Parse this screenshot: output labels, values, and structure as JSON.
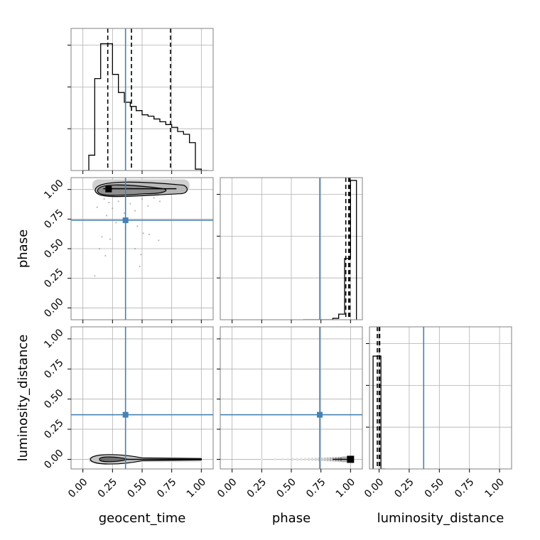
{
  "chart_data": {
    "type": "corner",
    "parameters": [
      "geocent_time",
      "phase",
      "luminosity_distance"
    ],
    "truths": {
      "geocent_time": 0.36,
      "phase": 0.74,
      "luminosity_distance": 0.37
    },
    "colors": {
      "truth": "#4682b4",
      "hist": "#000000",
      "grid": "#b0b0b0",
      "frame": "#808080"
    },
    "grid": true,
    "ticks": [
      "0.00",
      "0.25",
      "0.50",
      "0.75",
      "1.00"
    ],
    "ranges": {
      "geocent_time": [
        -0.1,
        1.1
      ],
      "phase": [
        -0.1,
        1.1
      ],
      "luminosity_distance": [
        -0.08,
        1.1
      ]
    },
    "hist_ylim": [
      0,
      1.02
    ],
    "histograms": {
      "geocent_time": {
        "edges": [
          0.0,
          0.05,
          0.1,
          0.15,
          0.2,
          0.25,
          0.3,
          0.35,
          0.4,
          0.45,
          0.5,
          0.55,
          0.6,
          0.65,
          0.7,
          0.75,
          0.8,
          0.85,
          0.9,
          0.95,
          1.0,
          1.05
        ],
        "counts": [
          0.0,
          0.11,
          0.66,
          0.91,
          0.91,
          0.69,
          0.56,
          0.49,
          0.46,
          0.43,
          0.4,
          0.39,
          0.37,
          0.35,
          0.33,
          0.31,
          0.28,
          0.26,
          0.2,
          0.01,
          0.0
        ],
        "quantiles": [
          0.21,
          0.41,
          0.74
        ]
      },
      "phase": {
        "edges": [
          0.6,
          0.65,
          0.7,
          0.75,
          0.8,
          0.85,
          0.9,
          0.95,
          1.0,
          1.05
        ],
        "counts": [
          0.0,
          0.0,
          0.0,
          0.0,
          0.0,
          0.01,
          0.04,
          0.44,
          1.0
        ],
        "quantiles": [
          0.96,
          0.985,
          0.995
        ]
      },
      "luminosity_distance": {
        "edges": [
          -0.05,
          -0.015,
          0.015,
          0.05
        ],
        "counts": [
          0.81,
          0.81,
          0.0
        ],
        "quantiles": [
          -0.015,
          0.0,
          0.005
        ]
      }
    },
    "scatter_pairs": [
      {
        "x": "geocent_time",
        "y": "phase",
        "density_center": [
          0.22,
          1.0
        ],
        "density_extent": [
          0.08,
          1.0,
          0.9,
          1.04
        ],
        "scatter_points": [
          [
            0.15,
            0.96
          ],
          [
            0.18,
            0.92
          ],
          [
            0.22,
            0.89
          ],
          [
            0.3,
            0.9
          ],
          [
            0.4,
            0.88
          ],
          [
            0.5,
            0.92
          ],
          [
            0.6,
            0.93
          ],
          [
            0.12,
            0.85
          ],
          [
            0.25,
            0.84
          ],
          [
            0.35,
            0.8
          ],
          [
            0.44,
            0.82
          ],
          [
            0.55,
            0.86
          ],
          [
            0.65,
            0.9
          ],
          [
            0.2,
            0.78
          ],
          [
            0.28,
            0.72
          ],
          [
            0.46,
            0.69
          ],
          [
            0.16,
            0.6
          ],
          [
            0.23,
            0.58
          ],
          [
            0.51,
            0.63
          ],
          [
            0.14,
            0.5
          ],
          [
            0.64,
            0.57
          ],
          [
            0.49,
            0.45
          ],
          [
            0.44,
            0.5
          ],
          [
            0.1,
            0.27
          ],
          [
            0.48,
            0.35
          ],
          [
            0.56,
            0.62
          ],
          [
            0.19,
            0.44
          ],
          [
            0.36,
            0.68
          ]
        ]
      },
      {
        "x": "geocent_time",
        "y": "luminosity_distance",
        "density_center": [
          0.2,
          0.0
        ],
        "density_extent": [
          0.05,
          0.0,
          1.0,
          0.0
        ]
      },
      {
        "x": "phase",
        "y": "luminosity_distance",
        "density_center": [
          1.0,
          0.0
        ],
        "density_extent": [
          0.25,
          0.0,
          1.0,
          0.0
        ]
      }
    ]
  }
}
